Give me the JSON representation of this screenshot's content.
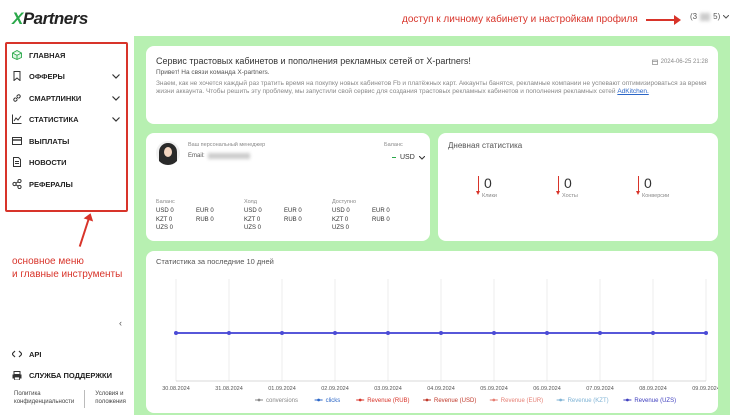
{
  "header": {
    "logo_x": "X",
    "logo_rest": "Partners",
    "annotation_profile": "доступ к личному кабинету и настройкам профиля",
    "profile_label_prefix": "(3",
    "profile_label_suffix": "5)"
  },
  "sidebar": {
    "items": [
      {
        "label": "ГЛАВНАЯ",
        "icon": "cube-icon",
        "chevron": false
      },
      {
        "label": "ОФФЕРЫ",
        "icon": "bookmark-icon",
        "chevron": true
      },
      {
        "label": "СМАРТЛИНКИ",
        "icon": "link-icon",
        "chevron": true
      },
      {
        "label": "СТАТИСТИКА",
        "icon": "line-chart-icon",
        "chevron": true
      },
      {
        "label": "ВЫПЛАТЫ",
        "icon": "card-icon",
        "chevron": false
      },
      {
        "label": "НОВОСТИ",
        "icon": "document-icon",
        "chevron": false
      },
      {
        "label": "РЕФЕРАЛЫ",
        "icon": "share-icon",
        "chevron": false
      }
    ],
    "annotation_line1": "основное меню",
    "annotation_line2": "и главные инструменты",
    "api_label": "API",
    "support_label": "СЛУЖБА ПОДДЕРЖКИ",
    "footer_privacy_1": "Политика",
    "footer_privacy_2": "конфиденциальности",
    "footer_terms_1": "Условия и",
    "footer_terms_2": "положения"
  },
  "welcome": {
    "title": "Сервис трастовых кабинетов и пополнения рекламных сетей от X-partners!",
    "date": "2024-06-25 21:28",
    "greeting": "Привет! На связи команда X-partners.",
    "body": "Знаем, как не хочется каждый раз тратить время на покупку новых кабинетов Fb и платёжных карт. Аккаунты банятся, рекламные компании не успевают оптимизироваться за время жизни аккаунта. Чтобы решить эту проблему, мы запустили свой сервис для создания трастовых рекламных кабинетов и пополнения рекламных сетей",
    "link": "AdKitchen."
  },
  "manager": {
    "label": "Ваш персональный менеджер",
    "email_label": "Email:",
    "balance_label": "Баланс",
    "currency": "USD",
    "columns": [
      {
        "header": "Баланс",
        "rows": [
          [
            "USD 0",
            "EUR 0"
          ],
          [
            "KZT 0",
            "RUB 0"
          ],
          [
            "UZS 0",
            ""
          ]
        ]
      },
      {
        "header": "Холд",
        "rows": [
          [
            "USD 0",
            "EUR 0"
          ],
          [
            "KZT 0",
            "RUB 0"
          ],
          [
            "UZS 0",
            ""
          ]
        ]
      },
      {
        "header": "Доступно",
        "rows": [
          [
            "USD 0",
            "EUR 0"
          ],
          [
            "KZT 0",
            "RUB 0"
          ],
          [
            "UZS 0",
            ""
          ]
        ]
      }
    ]
  },
  "daily": {
    "title": "Дневная статистика",
    "stats": [
      {
        "value": "0",
        "caption": "Клики"
      },
      {
        "value": "0",
        "caption": "Хосты"
      },
      {
        "value": "0",
        "caption": "Конверсии"
      }
    ]
  },
  "chart_data": {
    "type": "line",
    "title": "Статистика за последние 10 дней",
    "x": [
      "30.08.2024",
      "31.08.2024",
      "01.09.2024",
      "02.09.2024",
      "03.09.2024",
      "04.09.2024",
      "05.09.2024",
      "06.09.2024",
      "07.09.2024",
      "08.09.2024",
      "09.09.2024"
    ],
    "series": [
      {
        "name": "conversions",
        "values": [
          0,
          0,
          0,
          0,
          0,
          0,
          0,
          0,
          0,
          0,
          0
        ],
        "color": "#888888"
      },
      {
        "name": "clicks",
        "values": [
          0,
          0,
          0,
          0,
          0,
          0,
          0,
          0,
          0,
          0,
          0
        ],
        "color": "#2b66c7"
      },
      {
        "name": "Revenue (RUB)",
        "values": [
          0,
          0,
          0,
          0,
          0,
          0,
          0,
          0,
          0,
          0,
          0
        ],
        "color": "#d8342a"
      },
      {
        "name": "Revenue (USD)",
        "values": [
          0,
          0,
          0,
          0,
          0,
          0,
          0,
          0,
          0,
          0,
          0
        ],
        "color": "#c0392b"
      },
      {
        "name": "Revenue (EUR)",
        "values": [
          0,
          0,
          0,
          0,
          0,
          0,
          0,
          0,
          0,
          0,
          0
        ],
        "color": "#e67e73"
      },
      {
        "name": "Revenue (KZT)",
        "values": [
          0,
          0,
          0,
          0,
          0,
          0,
          0,
          0,
          0,
          0,
          0
        ],
        "color": "#7fb3d5"
      },
      {
        "name": "Revenue (UZS)",
        "values": [
          0,
          0,
          0,
          0,
          0,
          0,
          0,
          0,
          0,
          0,
          0
        ],
        "color": "#3f3fbf"
      }
    ],
    "grid": true,
    "legend": "bottom"
  },
  "colors": {
    "accent_green": "#2aa84a",
    "annotation_red": "#d8342a",
    "main_bg": "#b7f0b1",
    "line_color": "#4b4bd6"
  }
}
